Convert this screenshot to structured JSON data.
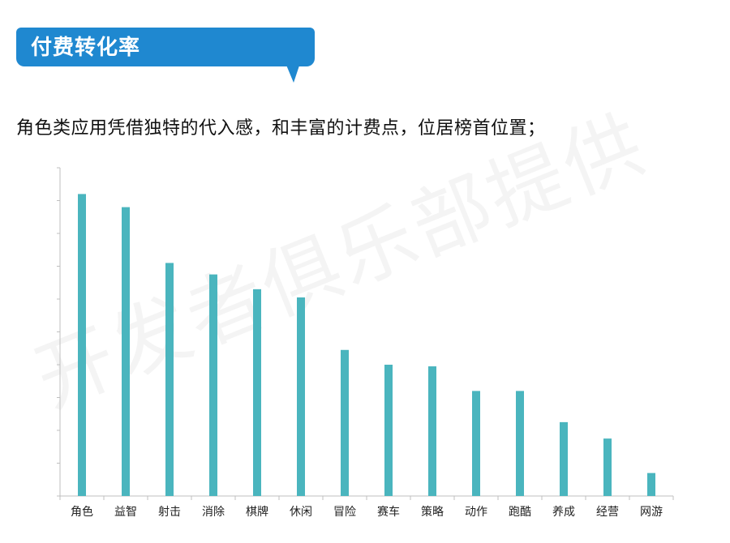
{
  "header": {
    "title": "付费转化率",
    "subtitle": "角色类应用凭借独特的代入感，和丰富的计费点，位居榜首位置；"
  },
  "watermark": "开发者俱乐部提供",
  "colors": {
    "bar": "#4ab5be",
    "banner": "#1f88d0",
    "axis": "#bfbfbf"
  },
  "chart_data": {
    "type": "bar",
    "title": "",
    "xlabel": "",
    "ylabel": "",
    "categories": [
      "角色",
      "益智",
      "射击",
      "消除",
      "棋牌",
      "休闲",
      "冒险",
      "赛车",
      "策略",
      "动作",
      "跑酷",
      "养成",
      "经营",
      "网游"
    ],
    "values": [
      92,
      88,
      71,
      67.5,
      63,
      60.5,
      44.5,
      40,
      39.5,
      32,
      32,
      22.5,
      17.5,
      7
    ],
    "ylim": [
      0,
      100
    ],
    "ytick_count": 10,
    "grid": false,
    "legend": "none"
  }
}
